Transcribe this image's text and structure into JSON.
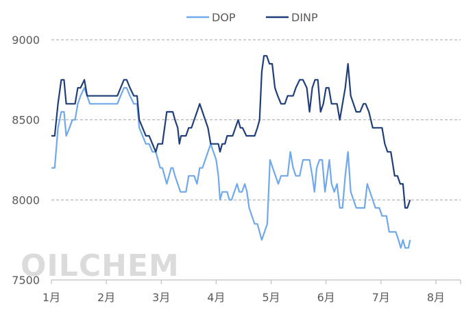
{
  "chart_data": {
    "type": "line",
    "title": "",
    "xlabel": "",
    "ylabel": "",
    "ylim": [
      7500,
      9000
    ],
    "yticks": [
      7500,
      8000,
      8500,
      9000
    ],
    "xlim": [
      1,
      8.45
    ],
    "month_ticks": [
      {
        "x": 1,
        "label": "1月"
      },
      {
        "x": 2,
        "label": "2月"
      },
      {
        "x": 3,
        "label": "3月"
      },
      {
        "x": 4,
        "label": "4月"
      },
      {
        "x": 5,
        "label": "5月"
      },
      {
        "x": 6,
        "label": "6月"
      },
      {
        "x": 7,
        "label": "7月"
      },
      {
        "x": 8,
        "label": "8月"
      }
    ],
    "grid": "horizontal-dashed",
    "legend_position": "top-center",
    "watermark": "OILCHEM",
    "series": [
      {
        "name": "DOP",
        "color": "#6fa8ee",
        "points": [
          [
            1.0,
            8200
          ],
          [
            1.06,
            8200
          ],
          [
            1.12,
            8450
          ],
          [
            1.18,
            8550
          ],
          [
            1.23,
            8550
          ],
          [
            1.27,
            8400
          ],
          [
            1.33,
            8450
          ],
          [
            1.38,
            8500
          ],
          [
            1.43,
            8500
          ],
          [
            1.48,
            8600
          ],
          [
            1.53,
            8650
          ],
          [
            1.6,
            8700
          ],
          [
            1.65,
            8650
          ],
          [
            1.7,
            8600
          ],
          [
            1.8,
            8600
          ],
          [
            1.9,
            8600
          ],
          [
            2.0,
            8600
          ],
          [
            2.1,
            8600
          ],
          [
            2.2,
            8600
          ],
          [
            2.26,
            8650
          ],
          [
            2.32,
            8700
          ],
          [
            2.37,
            8700
          ],
          [
            2.43,
            8650
          ],
          [
            2.5,
            8600
          ],
          [
            2.56,
            8600
          ],
          [
            2.6,
            8450
          ],
          [
            2.66,
            8400
          ],
          [
            2.72,
            8350
          ],
          [
            2.78,
            8350
          ],
          [
            2.84,
            8300
          ],
          [
            2.9,
            8300
          ],
          [
            2.94,
            8250
          ],
          [
            2.98,
            8200
          ],
          [
            3.02,
            8200
          ],
          [
            3.06,
            8150
          ],
          [
            3.1,
            8100
          ],
          [
            3.14,
            8150
          ],
          [
            3.18,
            8200
          ],
          [
            3.21,
            8200
          ],
          [
            3.25,
            8150
          ],
          [
            3.3,
            8100
          ],
          [
            3.35,
            8050
          ],
          [
            3.4,
            8050
          ],
          [
            3.45,
            8050
          ],
          [
            3.5,
            8150
          ],
          [
            3.55,
            8150
          ],
          [
            3.6,
            8150
          ],
          [
            3.65,
            8100
          ],
          [
            3.7,
            8200
          ],
          [
            3.75,
            8200
          ],
          [
            3.8,
            8250
          ],
          [
            3.85,
            8300
          ],
          [
            3.9,
            8350
          ],
          [
            3.95,
            8300
          ],
          [
            4.0,
            8250
          ],
          [
            4.04,
            8150
          ],
          [
            4.07,
            8000
          ],
          [
            4.11,
            8050
          ],
          [
            4.16,
            8050
          ],
          [
            4.2,
            8050
          ],
          [
            4.24,
            8000
          ],
          [
            4.28,
            8000
          ],
          [
            4.33,
            8050
          ],
          [
            4.38,
            8100
          ],
          [
            4.42,
            8050
          ],
          [
            4.47,
            8050
          ],
          [
            4.52,
            8100
          ],
          [
            4.56,
            8050
          ],
          [
            4.6,
            7950
          ],
          [
            4.65,
            7900
          ],
          [
            4.7,
            7850
          ],
          [
            4.75,
            7850
          ],
          [
            4.79,
            7800
          ],
          [
            4.83,
            7750
          ],
          [
            4.88,
            7800
          ],
          [
            4.93,
            7850
          ],
          [
            4.98,
            8250
          ],
          [
            5.03,
            8200
          ],
          [
            5.08,
            8150
          ],
          [
            5.13,
            8100
          ],
          [
            5.18,
            8150
          ],
          [
            5.25,
            8150
          ],
          [
            5.3,
            8150
          ],
          [
            5.35,
            8300
          ],
          [
            5.4,
            8200
          ],
          [
            5.45,
            8150
          ],
          [
            5.52,
            8150
          ],
          [
            5.58,
            8250
          ],
          [
            5.65,
            8250
          ],
          [
            5.7,
            8250
          ],
          [
            5.75,
            8150
          ],
          [
            5.79,
            8050
          ],
          [
            5.83,
            8200
          ],
          [
            5.88,
            8250
          ],
          [
            5.93,
            8250
          ],
          [
            5.98,
            8050
          ],
          [
            6.02,
            8150
          ],
          [
            6.06,
            8250
          ],
          [
            6.1,
            8100
          ],
          [
            6.15,
            8050
          ],
          [
            6.2,
            8100
          ],
          [
            6.25,
            7950
          ],
          [
            6.3,
            7950
          ],
          [
            6.35,
            8150
          ],
          [
            6.4,
            8300
          ],
          [
            6.45,
            8050
          ],
          [
            6.5,
            8000
          ],
          [
            6.55,
            7950
          ],
          [
            6.65,
            7950
          ],
          [
            6.7,
            7950
          ],
          [
            6.75,
            8100
          ],
          [
            6.8,
            8050
          ],
          [
            6.85,
            8000
          ],
          [
            6.9,
            7950
          ],
          [
            6.97,
            7950
          ],
          [
            7.02,
            7900
          ],
          [
            7.1,
            7900
          ],
          [
            7.15,
            7800
          ],
          [
            7.2,
            7800
          ],
          [
            7.27,
            7800
          ],
          [
            7.32,
            7750
          ],
          [
            7.36,
            7700
          ],
          [
            7.4,
            7750
          ],
          [
            7.44,
            7700
          ],
          [
            7.5,
            7700
          ],
          [
            7.53,
            7750
          ]
        ]
      },
      {
        "name": "DINP",
        "color": "#1f3d7a",
        "points": [
          [
            1.0,
            8400
          ],
          [
            1.06,
            8400
          ],
          [
            1.12,
            8600
          ],
          [
            1.18,
            8750
          ],
          [
            1.23,
            8750
          ],
          [
            1.27,
            8600
          ],
          [
            1.33,
            8600
          ],
          [
            1.38,
            8600
          ],
          [
            1.43,
            8600
          ],
          [
            1.48,
            8700
          ],
          [
            1.53,
            8700
          ],
          [
            1.6,
            8750
          ],
          [
            1.65,
            8650
          ],
          [
            1.7,
            8650
          ],
          [
            1.8,
            8650
          ],
          [
            1.9,
            8650
          ],
          [
            2.0,
            8650
          ],
          [
            2.1,
            8650
          ],
          [
            2.2,
            8650
          ],
          [
            2.26,
            8700
          ],
          [
            2.32,
            8750
          ],
          [
            2.37,
            8750
          ],
          [
            2.43,
            8700
          ],
          [
            2.5,
            8650
          ],
          [
            2.56,
            8650
          ],
          [
            2.6,
            8500
          ],
          [
            2.66,
            8450
          ],
          [
            2.72,
            8400
          ],
          [
            2.78,
            8400
          ],
          [
            2.84,
            8350
          ],
          [
            2.9,
            8300
          ],
          [
            2.94,
            8350
          ],
          [
            2.98,
            8350
          ],
          [
            3.02,
            8350
          ],
          [
            3.06,
            8450
          ],
          [
            3.1,
            8550
          ],
          [
            3.14,
            8550
          ],
          [
            3.18,
            8550
          ],
          [
            3.21,
            8550
          ],
          [
            3.25,
            8500
          ],
          [
            3.3,
            8450
          ],
          [
            3.33,
            8350
          ],
          [
            3.36,
            8400
          ],
          [
            3.4,
            8400
          ],
          [
            3.45,
            8400
          ],
          [
            3.5,
            8450
          ],
          [
            3.55,
            8450
          ],
          [
            3.6,
            8500
          ],
          [
            3.65,
            8550
          ],
          [
            3.7,
            8600
          ],
          [
            3.75,
            8550
          ],
          [
            3.8,
            8500
          ],
          [
            3.85,
            8450
          ],
          [
            3.9,
            8350
          ],
          [
            3.95,
            8350
          ],
          [
            4.0,
            8350
          ],
          [
            4.04,
            8350
          ],
          [
            4.07,
            8300
          ],
          [
            4.11,
            8350
          ],
          [
            4.16,
            8350
          ],
          [
            4.2,
            8400
          ],
          [
            4.25,
            8400
          ],
          [
            4.3,
            8400
          ],
          [
            4.35,
            8450
          ],
          [
            4.4,
            8500
          ],
          [
            4.44,
            8450
          ],
          [
            4.48,
            8450
          ],
          [
            4.55,
            8400
          ],
          [
            4.6,
            8400
          ],
          [
            4.65,
            8400
          ],
          [
            4.7,
            8400
          ],
          [
            4.75,
            8450
          ],
          [
            4.79,
            8500
          ],
          [
            4.83,
            8800
          ],
          [
            4.87,
            8900
          ],
          [
            4.92,
            8900
          ],
          [
            4.97,
            8850
          ],
          [
            5.02,
            8850
          ],
          [
            5.07,
            8700
          ],
          [
            5.12,
            8650
          ],
          [
            5.18,
            8600
          ],
          [
            5.25,
            8600
          ],
          [
            5.3,
            8650
          ],
          [
            5.35,
            8650
          ],
          [
            5.4,
            8650
          ],
          [
            5.45,
            8700
          ],
          [
            5.52,
            8750
          ],
          [
            5.58,
            8750
          ],
          [
            5.65,
            8700
          ],
          [
            5.7,
            8550
          ],
          [
            5.75,
            8700
          ],
          [
            5.8,
            8750
          ],
          [
            5.85,
            8750
          ],
          [
            5.9,
            8550
          ],
          [
            5.95,
            8600
          ],
          [
            6.0,
            8700
          ],
          [
            6.05,
            8700
          ],
          [
            6.1,
            8600
          ],
          [
            6.15,
            8600
          ],
          [
            6.2,
            8600
          ],
          [
            6.25,
            8500
          ],
          [
            6.3,
            8600
          ],
          [
            6.35,
            8700
          ],
          [
            6.4,
            8850
          ],
          [
            6.45,
            8650
          ],
          [
            6.5,
            8600
          ],
          [
            6.55,
            8550
          ],
          [
            6.62,
            8550
          ],
          [
            6.68,
            8600
          ],
          [
            6.72,
            8600
          ],
          [
            6.78,
            8550
          ],
          [
            6.85,
            8450
          ],
          [
            6.9,
            8450
          ],
          [
            6.97,
            8450
          ],
          [
            7.02,
            8450
          ],
          [
            7.07,
            8350
          ],
          [
            7.12,
            8300
          ],
          [
            7.18,
            8300
          ],
          [
            7.25,
            8150
          ],
          [
            7.3,
            8150
          ],
          [
            7.35,
            8100
          ],
          [
            7.4,
            8100
          ],
          [
            7.44,
            7950
          ],
          [
            7.48,
            7950
          ],
          [
            7.53,
            8000
          ]
        ]
      }
    ]
  }
}
